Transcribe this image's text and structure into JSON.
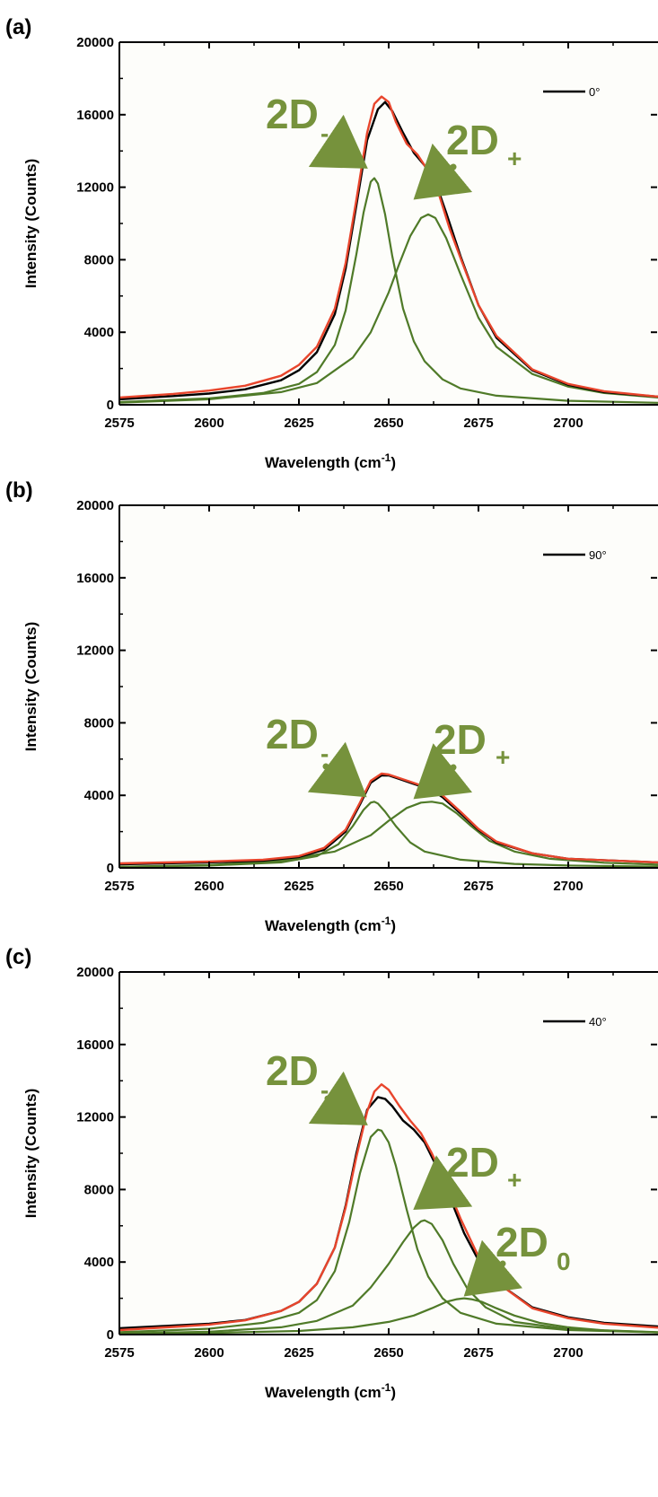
{
  "chart_data": [
    {
      "type": "line",
      "panel_label": "(a)",
      "xlabel": "Wavelength (cm",
      "xlabel_sup": "-1",
      "xlabel_end": ")",
      "ylabel": "Intensity (Counts)",
      "xlim": [
        2575,
        2725
      ],
      "ylim": [
        0,
        20000
      ],
      "x_ticks": [
        2575,
        2600,
        2625,
        2650,
        2675,
        2700
      ],
      "y_ticks": [
        0,
        4000,
        8000,
        12000,
        16000,
        20000
      ],
      "legend": {
        "label": "0°",
        "placement": "top-right"
      },
      "series": [
        {
          "name": "0°",
          "color": "#000000",
          "kind": "data",
          "x": [
            2575,
            2590,
            2600,
            2610,
            2620,
            2625,
            2630,
            2635,
            2638,
            2641,
            2644,
            2647,
            2649,
            2651,
            2654,
            2657,
            2660,
            2663,
            2666,
            2670,
            2675,
            2680,
            2690,
            2700,
            2710,
            2725
          ],
          "y": [
            300,
            480,
            620,
            850,
            1350,
            1900,
            2900,
            5000,
            7500,
            11000,
            14600,
            16300,
            16700,
            16200,
            15000,
            13900,
            13200,
            12300,
            10600,
            8200,
            5500,
            3700,
            1900,
            1100,
            700,
            450
          ]
        },
        {
          "name": "fit",
          "color": "#e8452c",
          "kind": "fit",
          "x": [
            2575,
            2590,
            2600,
            2610,
            2620,
            2625,
            2630,
            2635,
            2638,
            2641,
            2644,
            2646,
            2648,
            2650,
            2652,
            2655,
            2658,
            2661,
            2664,
            2667,
            2670,
            2675,
            2680,
            2690,
            2700,
            2710,
            2725
          ],
          "y": [
            400,
            600,
            780,
            1050,
            1600,
            2200,
            3200,
            5300,
            7800,
            11300,
            15000,
            16600,
            17000,
            16700,
            15600,
            14400,
            13800,
            12900,
            11600,
            9700,
            8100,
            5500,
            3800,
            1950,
            1150,
            750,
            450
          ]
        },
        {
          "name": "2D-",
          "color": "#4f7a28",
          "kind": "component",
          "x": [
            2575,
            2600,
            2615,
            2625,
            2630,
            2635,
            2638,
            2641,
            2643,
            2645,
            2646,
            2647,
            2649,
            2651,
            2654,
            2657,
            2660,
            2665,
            2670,
            2680,
            2700,
            2725
          ],
          "y": [
            150,
            350,
            650,
            1150,
            1800,
            3300,
            5200,
            8300,
            10600,
            12300,
            12500,
            12200,
            10500,
            8200,
            5300,
            3500,
            2400,
            1400,
            900,
            500,
            220,
            110
          ]
        },
        {
          "name": "2D+",
          "color": "#4f7a28",
          "kind": "component",
          "x": [
            2575,
            2600,
            2620,
            2630,
            2640,
            2645,
            2650,
            2653,
            2656,
            2659,
            2661,
            2663,
            2666,
            2670,
            2675,
            2680,
            2690,
            2700,
            2710,
            2725
          ],
          "y": [
            120,
            300,
            700,
            1200,
            2600,
            4000,
            6200,
            7800,
            9300,
            10300,
            10500,
            10300,
            9200,
            7200,
            4800,
            3200,
            1700,
            1000,
            650,
            400
          ]
        }
      ],
      "annotations": [
        {
          "main": "2D",
          "sub": "-"
        },
        {
          "main": "2D",
          "sub": "+"
        }
      ]
    },
    {
      "type": "line",
      "panel_label": "(b)",
      "xlabel": "Wavelength (cm",
      "xlabel_sup": "-1",
      "xlabel_end": ")",
      "ylabel": "Intensity (Counts)",
      "xlim": [
        2575,
        2725
      ],
      "ylim": [
        0,
        20000
      ],
      "x_ticks": [
        2575,
        2600,
        2625,
        2650,
        2675,
        2700
      ],
      "y_ticks": [
        0,
        4000,
        8000,
        12000,
        16000,
        20000
      ],
      "legend": {
        "label": "90°",
        "placement": "top-right"
      },
      "series": [
        {
          "name": "90°",
          "color": "#000000",
          "kind": "data",
          "x": [
            2575,
            2600,
            2615,
            2625,
            2632,
            2638,
            2642,
            2645,
            2648,
            2650,
            2653,
            2656,
            2659,
            2662,
            2665,
            2670,
            2675,
            2680,
            2690,
            2700,
            2725
          ],
          "y": [
            200,
            300,
            400,
            600,
            1000,
            2000,
            3500,
            4700,
            5100,
            5100,
            4900,
            4700,
            4500,
            4300,
            3900,
            3000,
            2100,
            1400,
            800,
            500,
            300
          ]
        },
        {
          "name": "fit",
          "color": "#e8452c",
          "kind": "fit",
          "x": [
            2575,
            2600,
            2615,
            2625,
            2632,
            2638,
            2642,
            2645,
            2648,
            2650,
            2653,
            2656,
            2659,
            2662,
            2665,
            2670,
            2675,
            2680,
            2690,
            2700,
            2725
          ],
          "y": [
            250,
            350,
            450,
            650,
            1100,
            2100,
            3600,
            4800,
            5200,
            5150,
            4950,
            4750,
            4550,
            4400,
            4000,
            3100,
            2150,
            1450,
            800,
            500,
            300
          ]
        },
        {
          "name": "2D-",
          "color": "#4f7a28",
          "kind": "component",
          "x": [
            2575,
            2600,
            2620,
            2630,
            2636,
            2640,
            2643,
            2645,
            2646,
            2647,
            2649,
            2652,
            2656,
            2660,
            2670,
            2685,
            2700,
            2725
          ],
          "y": [
            60,
            130,
            300,
            650,
            1300,
            2300,
            3200,
            3600,
            3650,
            3550,
            3100,
            2300,
            1400,
            900,
            450,
            220,
            130,
            70
          ]
        },
        {
          "name": "2D+",
          "color": "#4f7a28",
          "kind": "component",
          "x": [
            2575,
            2600,
            2620,
            2635,
            2645,
            2650,
            2655,
            2659,
            2662,
            2665,
            2669,
            2673,
            2678,
            2685,
            2695,
            2710,
            2725
          ],
          "y": [
            60,
            160,
            400,
            900,
            1800,
            2600,
            3300,
            3600,
            3650,
            3550,
            3000,
            2300,
            1500,
            900,
            500,
            280,
            180
          ]
        }
      ],
      "annotations": [
        {
          "main": "2D",
          "sub": "-"
        },
        {
          "main": "2D",
          "sub": "+"
        }
      ]
    },
    {
      "type": "line",
      "panel_label": "(c)",
      "xlabel": "Wavelength (cm",
      "xlabel_sup": "-1",
      "xlabel_end": ")",
      "ylabel": "Intensity (Counts)",
      "xlim": [
        2575,
        2725
      ],
      "ylim": [
        0,
        20000
      ],
      "x_ticks": [
        2575,
        2600,
        2625,
        2650,
        2675,
        2700
      ],
      "y_ticks": [
        0,
        4000,
        8000,
        12000,
        16000,
        20000
      ],
      "legend": {
        "label": "40°",
        "placement": "top-right"
      },
      "series": [
        {
          "name": "40°",
          "color": "#000000",
          "kind": "data",
          "x": [
            2575,
            2590,
            2600,
            2610,
            2620,
            2625,
            2630,
            2635,
            2638,
            2641,
            2644,
            2647,
            2649,
            2651,
            2654,
            2657,
            2660,
            2663,
            2667,
            2671,
            2675,
            2680,
            2690,
            2700,
            2710,
            2725
          ],
          "y": [
            350,
            500,
            600,
            800,
            1300,
            1800,
            2800,
            4800,
            7100,
            10000,
            12400,
            13100,
            13000,
            12600,
            11800,
            11300,
            10600,
            9400,
            7600,
            5600,
            4100,
            2900,
            1500,
            950,
            650,
            450
          ]
        },
        {
          "name": "fit",
          "color": "#e8452c",
          "kind": "fit",
          "x": [
            2575,
            2590,
            2600,
            2610,
            2620,
            2625,
            2630,
            2635,
            2638,
            2641,
            2644,
            2646,
            2648,
            2650,
            2653,
            2656,
            2659,
            2662,
            2666,
            2670,
            2675,
            2680,
            2690,
            2700,
            2710,
            2725
          ],
          "y": [
            250,
            420,
            550,
            780,
            1300,
            1800,
            2800,
            4800,
            7000,
            9800,
            12300,
            13400,
            13800,
            13500,
            12600,
            11800,
            11100,
            10000,
            8300,
            6400,
            4300,
            2900,
            1450,
            900,
            600,
            380
          ]
        },
        {
          "name": "2D-",
          "color": "#4f7a28",
          "kind": "component",
          "x": [
            2575,
            2600,
            2615,
            2625,
            2630,
            2635,
            2639,
            2642,
            2645,
            2647,
            2648,
            2650,
            2652,
            2655,
            2658,
            2661,
            2665,
            2670,
            2680,
            2700,
            2725
          ],
          "y": [
            130,
            320,
            650,
            1200,
            1900,
            3500,
            6200,
            8900,
            10900,
            11300,
            11250,
            10600,
            9300,
            6900,
            4700,
            3200,
            2000,
            1200,
            600,
            250,
            120
          ]
        },
        {
          "name": "2D+",
          "color": "#4f7a28",
          "kind": "component",
          "x": [
            2575,
            2600,
            2620,
            2630,
            2640,
            2645,
            2650,
            2654,
            2657,
            2659,
            2660,
            2662,
            2665,
            2668,
            2672,
            2677,
            2685,
            2700,
            2725
          ],
          "y": [
            60,
            160,
            400,
            750,
            1600,
            2600,
            3900,
            5100,
            5900,
            6250,
            6300,
            6100,
            5200,
            3900,
            2500,
            1500,
            700,
            300,
            130
          ]
        },
        {
          "name": "2D0",
          "color": "#4f7a28",
          "kind": "component",
          "x": [
            2575,
            2600,
            2625,
            2640,
            2650,
            2657,
            2662,
            2666,
            2669,
            2671,
            2673,
            2676,
            2680,
            2685,
            2692,
            2700,
            2710,
            2725
          ],
          "y": [
            40,
            90,
            200,
            400,
            700,
            1050,
            1450,
            1800,
            1950,
            2000,
            1950,
            1800,
            1450,
            1050,
            650,
            400,
            230,
            120
          ]
        }
      ],
      "annotations": [
        {
          "main": "2D",
          "sub": "-"
        },
        {
          "main": "2D",
          "sub": "+"
        },
        {
          "main": "2D",
          "sub": "0"
        }
      ]
    }
  ]
}
